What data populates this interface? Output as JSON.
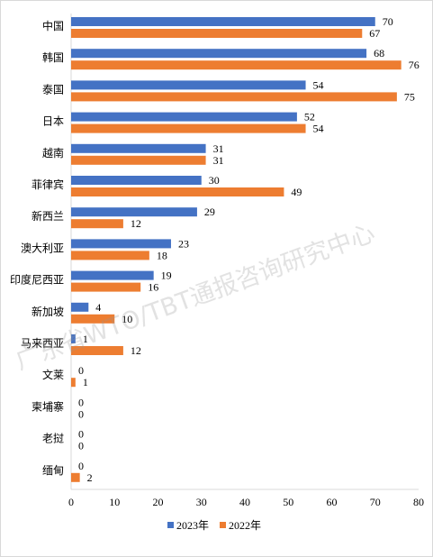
{
  "chart_data": {
    "type": "bar",
    "orientation": "horizontal",
    "categories": [
      "中国",
      "韩国",
      "泰国",
      "日本",
      "越南",
      "菲律宾",
      "新西兰",
      "澳大利亚",
      "印度尼西亚",
      "新加坡",
      "马来西亚",
      "文莱",
      "柬埔寨",
      "老挝",
      "缅甸"
    ],
    "series": [
      {
        "name": "2023年",
        "color": "#4472C4",
        "values": [
          70,
          68,
          54,
          52,
          31,
          30,
          29,
          23,
          19,
          4,
          1,
          0,
          0,
          0,
          0
        ]
      },
      {
        "name": "2022年",
        "color": "#ED7D31",
        "values": [
          67,
          76,
          75,
          54,
          31,
          49,
          12,
          18,
          16,
          10,
          12,
          1,
          0,
          0,
          2
        ]
      }
    ],
    "xlim": [
      0,
      80
    ],
    "xticks": [
      "0",
      "10",
      "20",
      "30",
      "40",
      "50",
      "60",
      "70",
      "80"
    ],
    "grid": false,
    "legend_position": "bottom",
    "data_labels": true
  },
  "watermark": "广东省WTO/TBT通报咨询研究中心"
}
